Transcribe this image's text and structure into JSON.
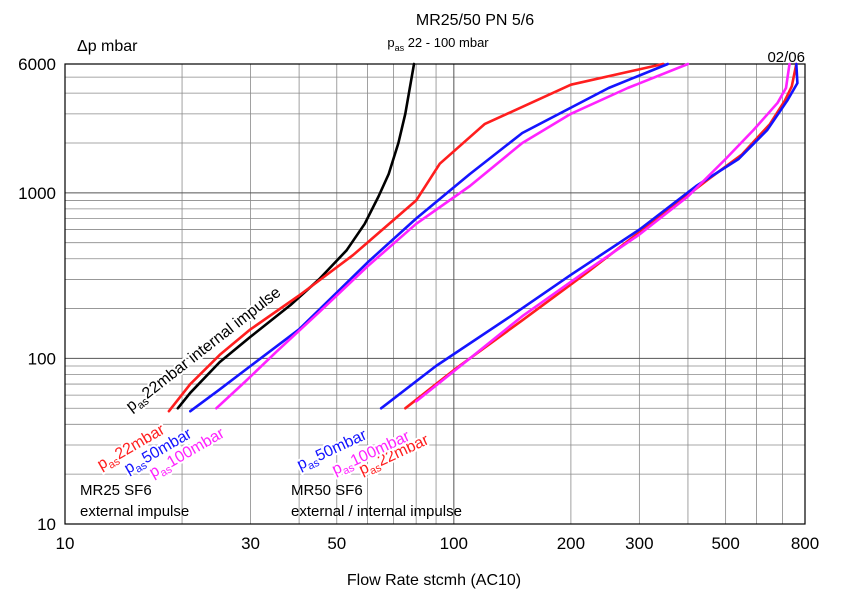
{
  "chart_data": {
    "type": "line",
    "title": "MR25/50 PN 5/6",
    "subtitle": {
      "main": "p",
      "sub": "as",
      "rest": " 22 - 100 mbar"
    },
    "date_code": "02/06",
    "ylabel": "Δp mbar",
    "xlabel": "Flow Rate stcmh (AC10)",
    "x_scale": "log",
    "y_scale": "log",
    "xlim": [
      10,
      800
    ],
    "ylim": [
      10,
      6000
    ],
    "x_ticks": [
      10,
      30,
      50,
      100,
      200,
      300,
      500,
      800
    ],
    "y_ticks": [
      10,
      100,
      1000,
      6000
    ],
    "grid": true,
    "colors": {
      "black": "#000000",
      "red": "#ff1e1e",
      "blue": "#1414ff",
      "magenta": "#ff22ff"
    },
    "annotations": [
      {
        "id": "mr25",
        "lines": [
          "MR25 SF6",
          "external impulse"
        ]
      },
      {
        "id": "mr50",
        "lines": [
          "MR50 SF6",
          "external / internal impulse"
        ]
      }
    ],
    "series": [
      {
        "key": "mr25_internal_22",
        "label": {
          "main": "p",
          "sub": "as",
          "rest": "22mbar internal impulse"
        },
        "color": "black",
        "points": [
          [
            19.5,
            50
          ],
          [
            21,
            62
          ],
          [
            25,
            95
          ],
          [
            30,
            135
          ],
          [
            38,
            210
          ],
          [
            45,
            300
          ],
          [
            53,
            450
          ],
          [
            59,
            650
          ],
          [
            64,
            950
          ],
          [
            68,
            1300
          ],
          [
            72,
            2000
          ],
          [
            75,
            3000
          ],
          [
            79,
            6000
          ]
        ]
      },
      {
        "key": "mr25_ext_22",
        "label": {
          "main": "p",
          "sub": "as",
          "rest": "22mbar"
        },
        "color": "red",
        "points": [
          [
            18.5,
            48
          ],
          [
            21,
            70
          ],
          [
            25,
            105
          ],
          [
            30,
            150
          ],
          [
            40,
            240
          ],
          [
            55,
            420
          ],
          [
            80,
            900
          ],
          [
            92,
            1500
          ],
          [
            120,
            2600
          ],
          [
            200,
            4500
          ],
          [
            345,
            6000
          ]
        ]
      },
      {
        "key": "mr25_ext_50",
        "label": {
          "main": "p",
          "sub": "as",
          "rest": "50mbar"
        },
        "color": "blue",
        "points": [
          [
            21,
            48
          ],
          [
            25,
            65
          ],
          [
            30,
            90
          ],
          [
            40,
            150
          ],
          [
            50,
            250
          ],
          [
            60,
            380
          ],
          [
            80,
            700
          ],
          [
            110,
            1300
          ],
          [
            150,
            2300
          ],
          [
            250,
            4300
          ],
          [
            355,
            6000
          ]
        ]
      },
      {
        "key": "mr25_ext_100",
        "label": {
          "main": "p",
          "sub": "as",
          "rest": "100mbar"
        },
        "color": "magenta",
        "points": [
          [
            24.5,
            50
          ],
          [
            29,
            72
          ],
          [
            35,
            110
          ],
          [
            45,
            190
          ],
          [
            60,
            360
          ],
          [
            80,
            650
          ],
          [
            110,
            1100
          ],
          [
            150,
            2000
          ],
          [
            200,
            3000
          ],
          [
            280,
            4300
          ],
          [
            400,
            6000
          ]
        ]
      },
      {
        "key": "mr50_22",
        "label": {
          "main": "p",
          "sub": "as",
          "rest": "22mbar"
        },
        "color": "red",
        "points": [
          [
            75,
            50
          ],
          [
            100,
            85
          ],
          [
            150,
            170
          ],
          [
            220,
            330
          ],
          [
            320,
            650
          ],
          [
            450,
            1200
          ],
          [
            550,
            1700
          ],
          [
            650,
            2600
          ],
          [
            710,
            3600
          ],
          [
            740,
            4400
          ],
          [
            760,
            6000
          ]
        ]
      },
      {
        "key": "mr50_50",
        "label": {
          "main": "p",
          "sub": "as",
          "rest": "50mbar"
        },
        "color": "blue",
        "points": [
          [
            65,
            50
          ],
          [
            90,
            90
          ],
          [
            140,
            180
          ],
          [
            200,
            320
          ],
          [
            300,
            600
          ],
          [
            420,
            1100
          ],
          [
            540,
            1600
          ],
          [
            640,
            2400
          ],
          [
            720,
            3600
          ],
          [
            765,
            4600
          ],
          [
            760,
            6000
          ]
        ]
      },
      {
        "key": "mr50_100",
        "label": {
          "main": "p",
          "sub": "as",
          "rest": "100mbar"
        },
        "color": "magenta",
        "points": [
          [
            80,
            55
          ],
          [
            110,
            100
          ],
          [
            150,
            180
          ],
          [
            220,
            340
          ],
          [
            300,
            560
          ],
          [
            400,
            950
          ],
          [
            500,
            1600
          ],
          [
            590,
            2400
          ],
          [
            680,
            3500
          ],
          [
            715,
            4300
          ],
          [
            730,
            6000
          ]
        ]
      }
    ]
  }
}
